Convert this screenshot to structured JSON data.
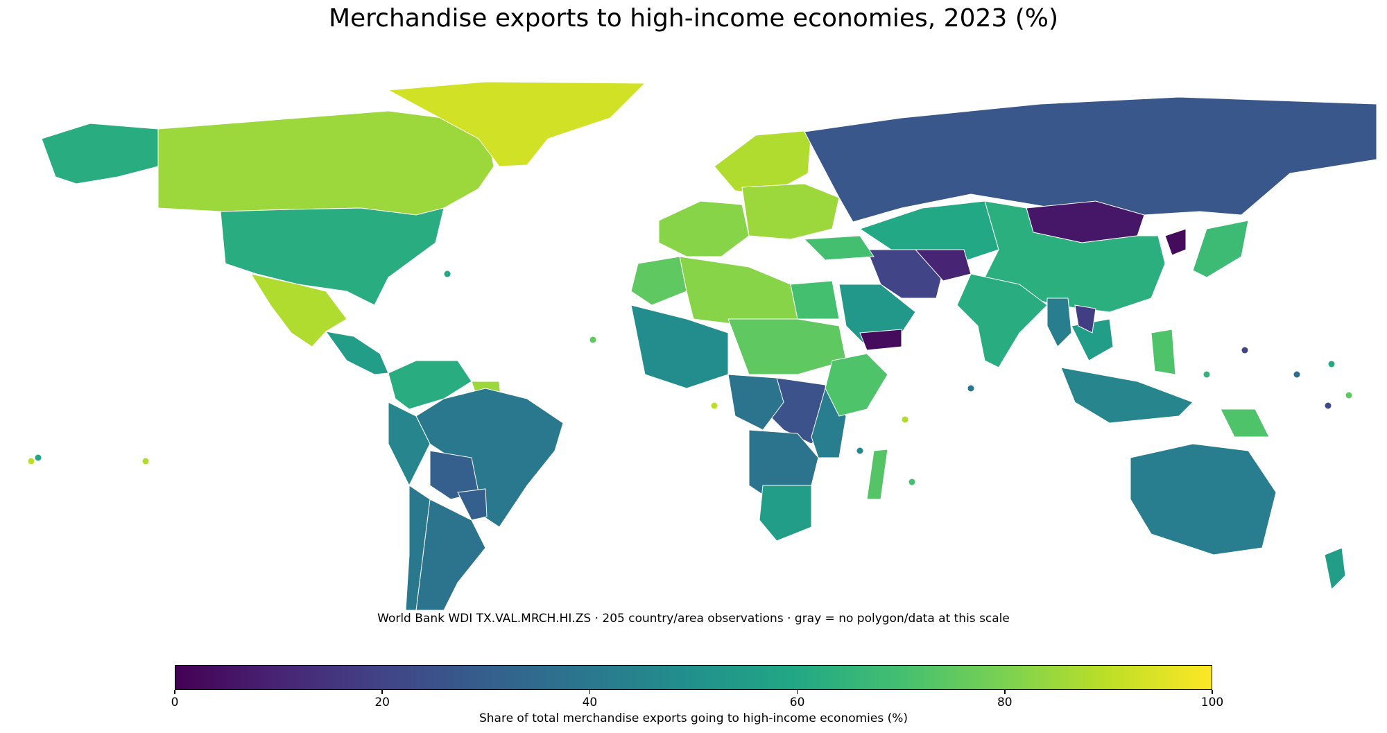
{
  "title": "Merchandise exports to high-income economies, 2023 (%)",
  "caption": "World Bank WDI TX.VAL.MRCH.HI.ZS · 205 country/area observations · gray = no polygon/data at this scale",
  "colorbar": {
    "label": "Share of total merchandise exports going to high-income economies (%)",
    "min": 0,
    "max": 100,
    "ticks": [
      "0",
      "20",
      "40",
      "60",
      "80",
      "100"
    ],
    "colormap": "viridis",
    "nodata_color": "#dddddd"
  },
  "chart_data": {
    "type": "choropleth",
    "title": "Merchandise exports to high-income economies, 2023 (%)",
    "value_range": [
      0,
      100
    ],
    "unit": "%",
    "observations": 205,
    "regions": [
      {
        "name": "Canada",
        "value": 85
      },
      {
        "name": "Greenland",
        "value": 93
      },
      {
        "name": "United States",
        "value": 62
      },
      {
        "name": "Mexico",
        "value": 88
      },
      {
        "name": "Alaska",
        "value": 62
      },
      {
        "name": "Central America",
        "value": 55
      },
      {
        "name": "Colombia/Venezuela",
        "value": 62
      },
      {
        "name": "Guyana/Suriname",
        "value": 85
      },
      {
        "name": "Brazil",
        "value": 40
      },
      {
        "name": "Peru",
        "value": 45
      },
      {
        "name": "Bolivia",
        "value": 30
      },
      {
        "name": "Paraguay",
        "value": 30
      },
      {
        "name": "Argentina",
        "value": 38
      },
      {
        "name": "Chile",
        "value": 40
      },
      {
        "name": "Western Europe",
        "value": 82
      },
      {
        "name": "Scandinavia",
        "value": 88
      },
      {
        "name": "Central Europe",
        "value": 85
      },
      {
        "name": "Russia",
        "value": 27
      },
      {
        "name": "Mongolia",
        "value": 6
      },
      {
        "name": "China",
        "value": 63
      },
      {
        "name": "North Korea",
        "value": 3
      },
      {
        "name": "Japan",
        "value": 68
      },
      {
        "name": "Kazakhstan/Central Asia",
        "value": 60
      },
      {
        "name": "Iran",
        "value": 20
      },
      {
        "name": "Afghanistan",
        "value": 10
      },
      {
        "name": "Saudi Arabia",
        "value": 53
      },
      {
        "name": "Yemen",
        "value": 3
      },
      {
        "name": "Turkey",
        "value": 70
      },
      {
        "name": "India",
        "value": 62
      },
      {
        "name": "Myanmar",
        "value": 42
      },
      {
        "name": "Thailand/Vietnam",
        "value": 55
      },
      {
        "name": "Laos",
        "value": 18
      },
      {
        "name": "Indonesia",
        "value": 45
      },
      {
        "name": "Philippines",
        "value": 72
      },
      {
        "name": "Papua New Guinea",
        "value": 72
      },
      {
        "name": "Australia",
        "value": 42
      },
      {
        "name": "New Zealand",
        "value": 55
      },
      {
        "name": "North Africa (Algeria/Libya)",
        "value": 82
      },
      {
        "name": "Morocco",
        "value": 75
      },
      {
        "name": "Egypt",
        "value": 70
      },
      {
        "name": "West Africa",
        "value": 48
      },
      {
        "name": "Chad/Niger/Sudan",
        "value": 75
      },
      {
        "name": "DR Congo",
        "value": 25
      },
      {
        "name": "Central Africa",
        "value": 38
      },
      {
        "name": "East Africa",
        "value": 42
      },
      {
        "name": "Ethiopia/Somalia",
        "value": 72
      },
      {
        "name": "Southern Africa",
        "value": 38
      },
      {
        "name": "South Africa",
        "value": 55
      },
      {
        "name": "Madagascar",
        "value": 73
      }
    ]
  }
}
